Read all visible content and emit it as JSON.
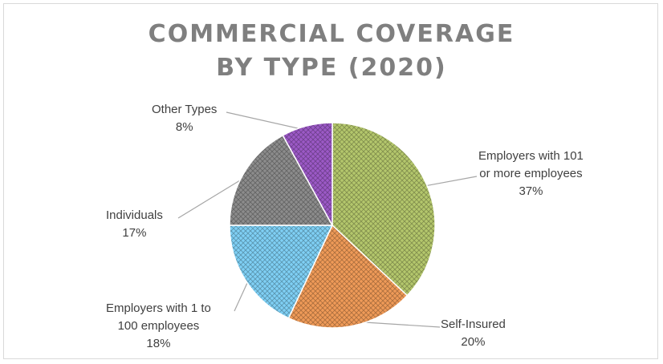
{
  "chart_data": {
    "type": "pie",
    "title_lines": [
      "COMMERCIAL COVERAGE",
      "BY TYPE (2020)"
    ],
    "slices": [
      {
        "label_lines": [
          "Employers with 101",
          "or more employees"
        ],
        "value": 37,
        "value_label": "37%",
        "color": "#b4c76c"
      },
      {
        "label_lines": [
          "Self-Insured"
        ],
        "value": 20,
        "value_label": "20%",
        "color": "#ef9a58"
      },
      {
        "label_lines": [
          "Employers with 1 to",
          "100 employees"
        ],
        "value": 18,
        "value_label": "18%",
        "color": "#7fd0f5"
      },
      {
        "label_lines": [
          "Individuals"
        ],
        "value": 17,
        "value_label": "17%",
        "color": "#8c8c8c"
      },
      {
        "label_lines": [
          "Other Types"
        ],
        "value": 8,
        "value_label": "8%",
        "color": "#9b59c6"
      }
    ],
    "legend": "none"
  }
}
